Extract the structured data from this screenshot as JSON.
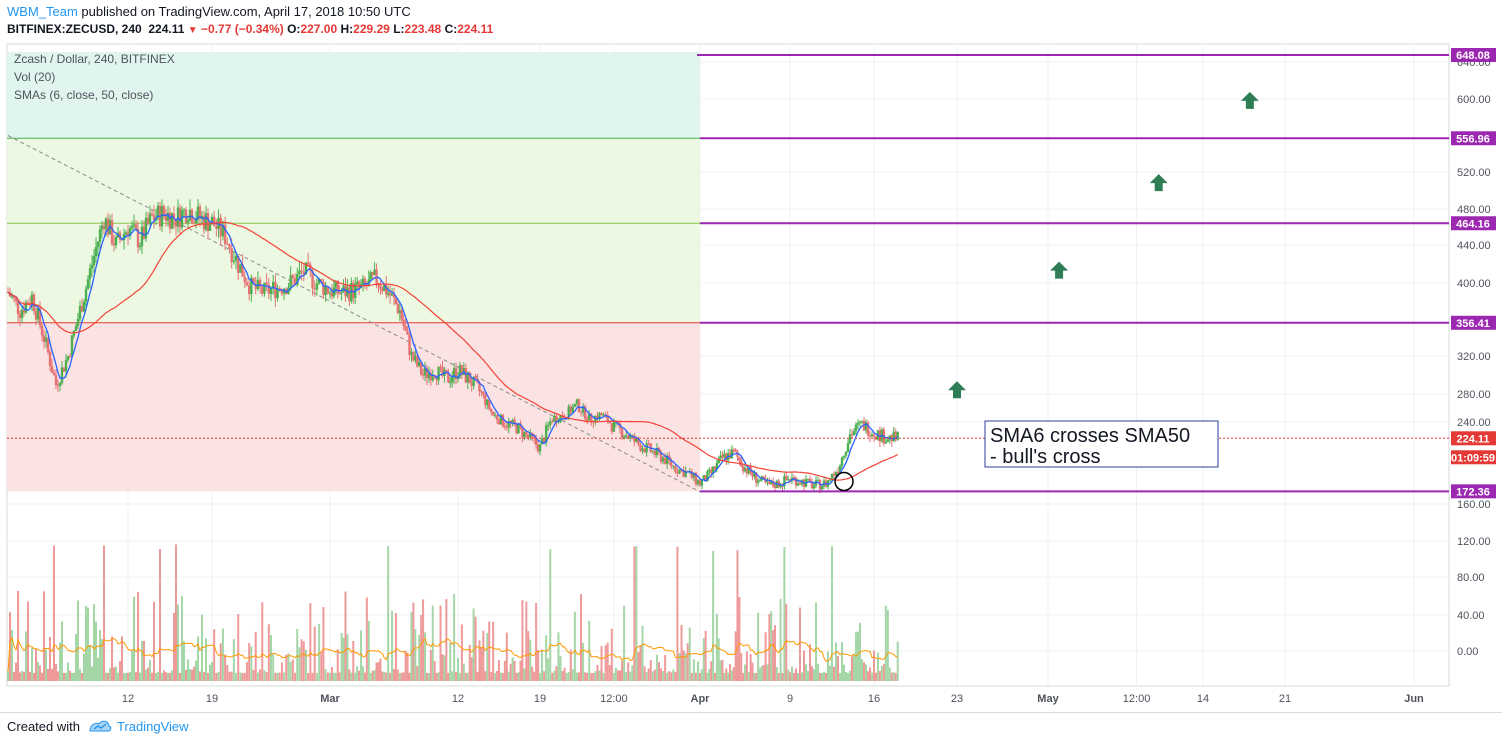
{
  "header": {
    "author": "WBM_Team",
    "published": "published on TradingView.com, April 17, 2018 10:50 UTC",
    "symbol": "BITFINEX:ZECUSD, 240",
    "last": "224.11",
    "change": "−0.77 (−0.34%)",
    "o_label": "O:",
    "o_value": "227.00",
    "h_label": "H:",
    "h_value": "229.29",
    "l_label": "L:",
    "l_value": "223.48",
    "c_label": "C:",
    "c_value": "224.11"
  },
  "legend": {
    "title": "Zcash / Dollar, 240, BITFINEX",
    "volume": "Vol (20)",
    "smas": "SMAs (6, close, 50, close)"
  },
  "annotation": {
    "line1": "SMA6 crosses SMA50",
    "line2": "- bull's cross"
  },
  "footer": {
    "created_with": "Created with",
    "brand": "TradingView"
  },
  "colors": {
    "up": "#4caf50",
    "down": "#e57373",
    "sma_fast": "#2962ff",
    "sma_slow": "#f44336",
    "level_line": "#9c27b0",
    "arrow": "#2e7d54",
    "zone_top": "#dff5ee",
    "zone_mid": "#ecf8e2",
    "zone_bottom": "#fbe3e3"
  },
  "chart_data": {
    "type": "candlestick",
    "price_axis": {
      "ticks": [
        0,
        40,
        80,
        120,
        160,
        240,
        280,
        320,
        400,
        440,
        480,
        520,
        600,
        640
      ],
      "tick_labels": [
        "0.00",
        "40.00",
        "80.00",
        "120.00",
        "160.00",
        "240.00",
        "280.00",
        "320.00",
        "400.00",
        "440.00",
        "480.00",
        "520.00",
        "600.00",
        "640.00"
      ]
    },
    "time_axis": {
      "labels": [
        "12",
        "19",
        "Mar",
        "12",
        "19",
        "12:00",
        "Apr",
        "9",
        "16",
        "23",
        "May",
        "12:00",
        "14",
        "21",
        "Jun"
      ],
      "day_index": [
        10,
        17,
        26,
        37,
        44,
        50,
        57,
        65,
        72,
        79,
        86,
        94,
        100,
        107,
        117
      ]
    },
    "levels": [
      {
        "value": 648.08,
        "label": "648.08"
      },
      {
        "value": 556.96,
        "label": "556.96"
      },
      {
        "value": 464.16,
        "label": "464.16"
      },
      {
        "value": 356.41,
        "label": "356.41"
      },
      {
        "value": 172.36,
        "label": "172.36"
      }
    ],
    "last_price": {
      "value": 224.11,
      "label": "224.11",
      "countdown": "01:09:59"
    },
    "price_path": [
      {
        "d": 0,
        "p": 390
      },
      {
        "d": 1,
        "p": 370
      },
      {
        "d": 2,
        "p": 385
      },
      {
        "d": 3,
        "p": 340
      },
      {
        "d": 4,
        "p": 290
      },
      {
        "d": 5,
        "p": 320
      },
      {
        "d": 6,
        "p": 370
      },
      {
        "d": 7,
        "p": 420
      },
      {
        "d": 8,
        "p": 470
      },
      {
        "d": 9,
        "p": 440
      },
      {
        "d": 10,
        "p": 460
      },
      {
        "d": 11,
        "p": 445
      },
      {
        "d": 12,
        "p": 470
      },
      {
        "d": 13,
        "p": 475
      },
      {
        "d": 14,
        "p": 470
      },
      {
        "d": 15,
        "p": 480
      },
      {
        "d": 16,
        "p": 470
      },
      {
        "d": 17,
        "p": 465
      },
      {
        "d": 18,
        "p": 450
      },
      {
        "d": 19,
        "p": 420
      },
      {
        "d": 20,
        "p": 395
      },
      {
        "d": 21,
        "p": 390
      },
      {
        "d": 22,
        "p": 395
      },
      {
        "d": 23,
        "p": 400
      },
      {
        "d": 24,
        "p": 412
      },
      {
        "d": 25,
        "p": 400
      },
      {
        "d": 26,
        "p": 392
      },
      {
        "d": 27,
        "p": 390
      },
      {
        "d": 28,
        "p": 392
      },
      {
        "d": 29,
        "p": 395
      },
      {
        "d": 30,
        "p": 405
      },
      {
        "d": 31,
        "p": 390
      },
      {
        "d": 32,
        "p": 370
      },
      {
        "d": 33,
        "p": 320
      },
      {
        "d": 34,
        "p": 300
      },
      {
        "d": 35,
        "p": 305
      },
      {
        "d": 36,
        "p": 295
      },
      {
        "d": 37,
        "p": 305
      },
      {
        "d": 38,
        "p": 295
      },
      {
        "d": 39,
        "p": 280
      },
      {
        "d": 40,
        "p": 250
      },
      {
        "d": 41,
        "p": 240
      },
      {
        "d": 42,
        "p": 235
      },
      {
        "d": 43,
        "p": 225
      },
      {
        "d": 44,
        "p": 215
      },
      {
        "d": 45,
        "p": 245
      },
      {
        "d": 46,
        "p": 250
      },
      {
        "d": 47,
        "p": 265
      },
      {
        "d": 48,
        "p": 245
      },
      {
        "d": 49,
        "p": 250
      },
      {
        "d": 50,
        "p": 235
      },
      {
        "d": 51,
        "p": 228
      },
      {
        "d": 52,
        "p": 218
      },
      {
        "d": 53,
        "p": 212
      },
      {
        "d": 54,
        "p": 205
      },
      {
        "d": 55,
        "p": 195
      },
      {
        "d": 56,
        "p": 190
      },
      {
        "d": 57,
        "p": 180
      },
      {
        "d": 58,
        "p": 190
      },
      {
        "d": 59,
        "p": 205
      },
      {
        "d": 60,
        "p": 210
      },
      {
        "d": 61,
        "p": 195
      },
      {
        "d": 62,
        "p": 185
      },
      {
        "d": 63,
        "p": 178
      },
      {
        "d": 64,
        "p": 180
      },
      {
        "d": 65,
        "p": 185
      },
      {
        "d": 66,
        "p": 182
      },
      {
        "d": 67,
        "p": 178
      },
      {
        "d": 68,
        "p": 180
      },
      {
        "d": 69,
        "p": 195
      },
      {
        "d": 70,
        "p": 228
      },
      {
        "d": 71,
        "p": 238
      },
      {
        "d": 72,
        "p": 230
      },
      {
        "d": 73,
        "p": 225
      },
      {
        "d": 74,
        "p": 224
      }
    ]
  }
}
